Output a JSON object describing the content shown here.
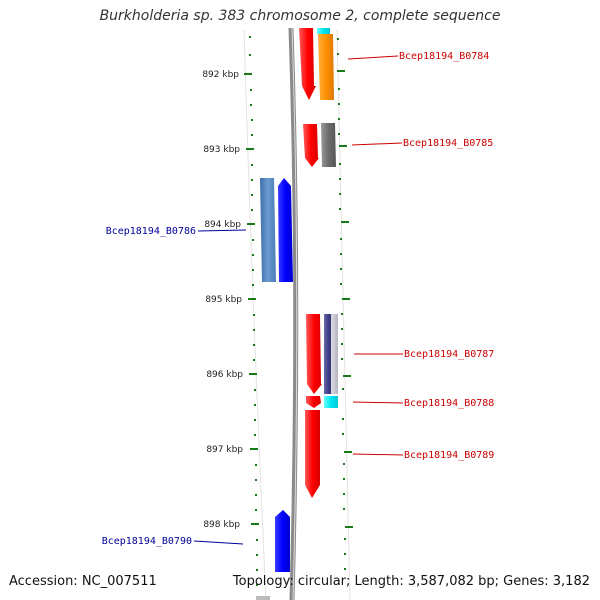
{
  "title": "Burkholderia sp. 383 chromosome 2, complete sequence",
  "footer": {
    "accession": "Accession: NC_007511",
    "summary": "Topology: circular; Length: 3,587,082 bp; Genes: 3,182"
  },
  "colors": {
    "backbone": "#8a8a8a",
    "tick": "#1a7a1a",
    "right_label": "#cc0000",
    "left_label": "#000099"
  },
  "ticks": [
    {
      "label": "892 kbp"
    },
    {
      "label": "893 kbp"
    },
    {
      "label": "894 kbp"
    },
    {
      "label": "895 kbp"
    },
    {
      "label": "896 kbp"
    },
    {
      "label": "897 kbp"
    },
    {
      "label": "898 kbp"
    }
  ],
  "gene_labels": [
    {
      "text": "Bcep18194_B0784",
      "side": "right"
    },
    {
      "text": "Bcep18194_B0785",
      "side": "right"
    },
    {
      "text": "Bcep18194_B0786",
      "side": "left"
    },
    {
      "text": "Bcep18194_B0787",
      "side": "right"
    },
    {
      "text": "Bcep18194_B0788",
      "side": "right"
    },
    {
      "text": "Bcep18194_B0789",
      "side": "right"
    },
    {
      "text": "Bcep18194_B0790",
      "side": "left"
    }
  ]
}
